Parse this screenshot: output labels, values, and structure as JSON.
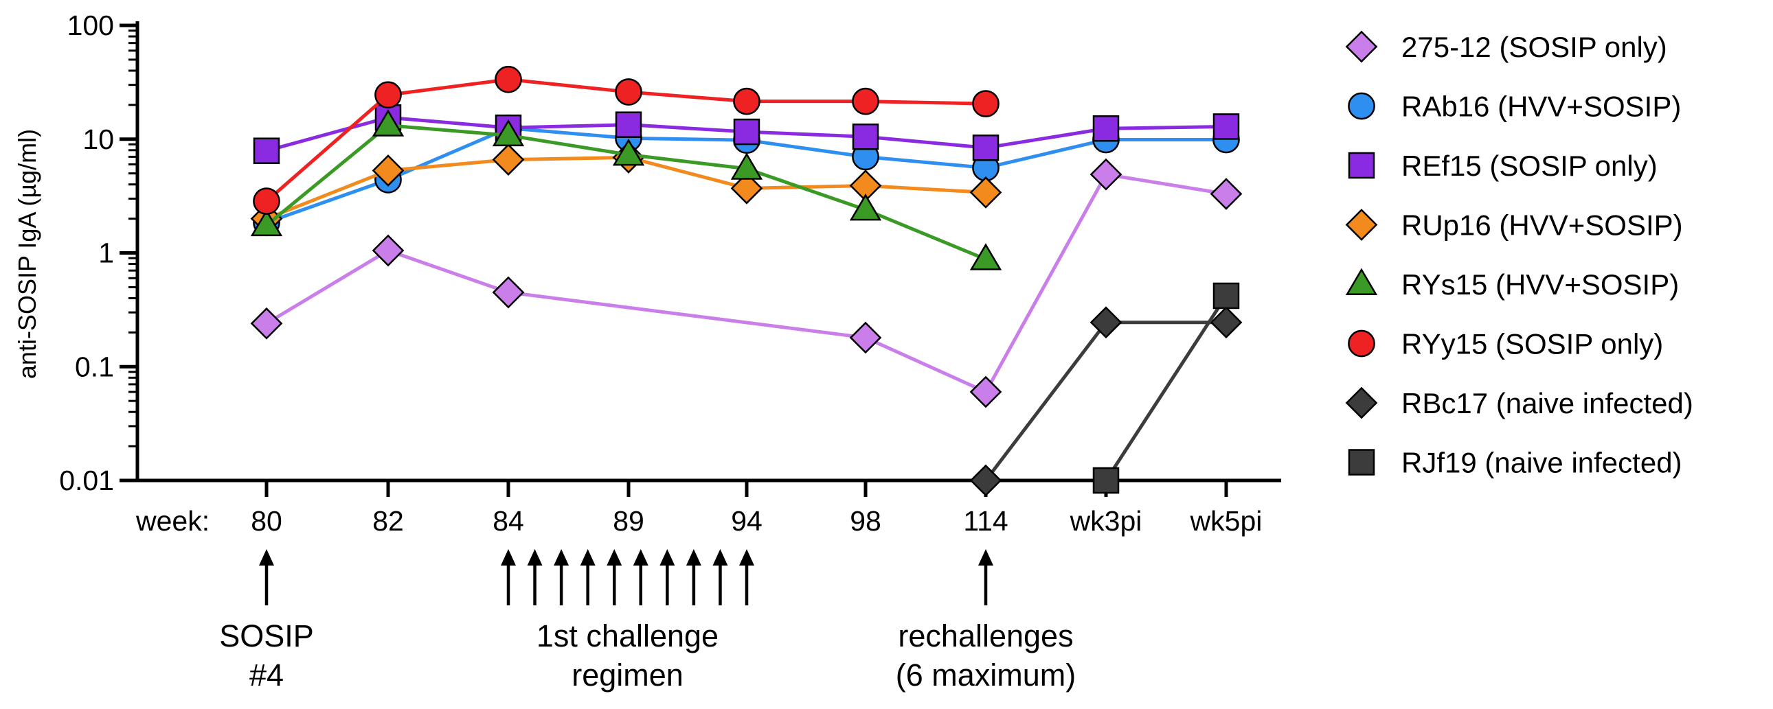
{
  "chart_data": {
    "type": "line",
    "ylabel": "anti-SOSIP IgA (µg/ml)",
    "yscale": "log",
    "ylim": [
      0.01,
      100
    ],
    "yticks": [
      "0.01",
      "0.1",
      "1",
      "10",
      "100"
    ],
    "x_prefix": "week:",
    "categories": [
      "80",
      "82",
      "84",
      "89",
      "94",
      "98",
      "114",
      "wk3pi",
      "wk5pi"
    ],
    "series": [
      {
        "name": "275-12 (SOSIP only)",
        "color": "#c97ee9",
        "marker": "diamond",
        "values": [
          0.24,
          1.05,
          0.45,
          null,
          null,
          0.18,
          0.06,
          4.9,
          3.3
        ]
      },
      {
        "name": "RAb16 (HVV+SOSIP)",
        "color": "#2f8ff0",
        "marker": "circle",
        "values": [
          1.85,
          4.4,
          12.5,
          10.2,
          9.8,
          7.0,
          5.6,
          9.9,
          9.9
        ]
      },
      {
        "name": "REf15 (SOSIP only)",
        "color": "#8a2be2",
        "marker": "square",
        "values": [
          7.9,
          15.5,
          12.6,
          13.4,
          11.6,
          10.5,
          8.4,
          12.4,
          12.9
        ]
      },
      {
        "name": "RUp16 (HVV+SOSIP)",
        "color": "#f28a1d",
        "marker": "diamond",
        "values": [
          2.0,
          5.3,
          6.6,
          6.9,
          3.7,
          3.9,
          3.4,
          null,
          null
        ]
      },
      {
        "name": "RYs15 (HVV+SOSIP)",
        "color": "#3a9a25",
        "marker": "triangle",
        "values": [
          1.75,
          13.2,
          10.8,
          7.3,
          5.5,
          2.4,
          0.88,
          null,
          null
        ]
      },
      {
        "name": "RYy15 (SOSIP only)",
        "color": "#ee2222",
        "marker": "circle",
        "values": [
          2.85,
          24.5,
          33.5,
          26.0,
          21.5,
          21.5,
          20.5,
          null,
          null
        ]
      },
      {
        "name": "RBc17 (naive infected)",
        "color": "#3c3c3c",
        "marker": "diamond",
        "values": [
          null,
          null,
          null,
          null,
          null,
          null,
          0.01,
          0.245,
          0.245
        ]
      },
      {
        "name": "RJf19 (naive infected)",
        "color": "#3c3c3c",
        "marker": "square",
        "values": [
          null,
          null,
          null,
          null,
          null,
          null,
          null,
          0.01,
          0.42
        ]
      }
    ],
    "annotations": [
      {
        "text_lines": [
          "SOSIP",
          "#4"
        ],
        "arrows_at": [
          "80"
        ]
      },
      {
        "text_lines": [
          "1st challenge",
          "regimen"
        ],
        "arrows_count": 10,
        "arrows_span": [
          "84",
          "94"
        ]
      },
      {
        "text_lines": [
          "rechallenges",
          "(6 maximum)"
        ],
        "arrows_at": [
          "114"
        ]
      }
    ],
    "legend_position": "right",
    "grid": false
  }
}
